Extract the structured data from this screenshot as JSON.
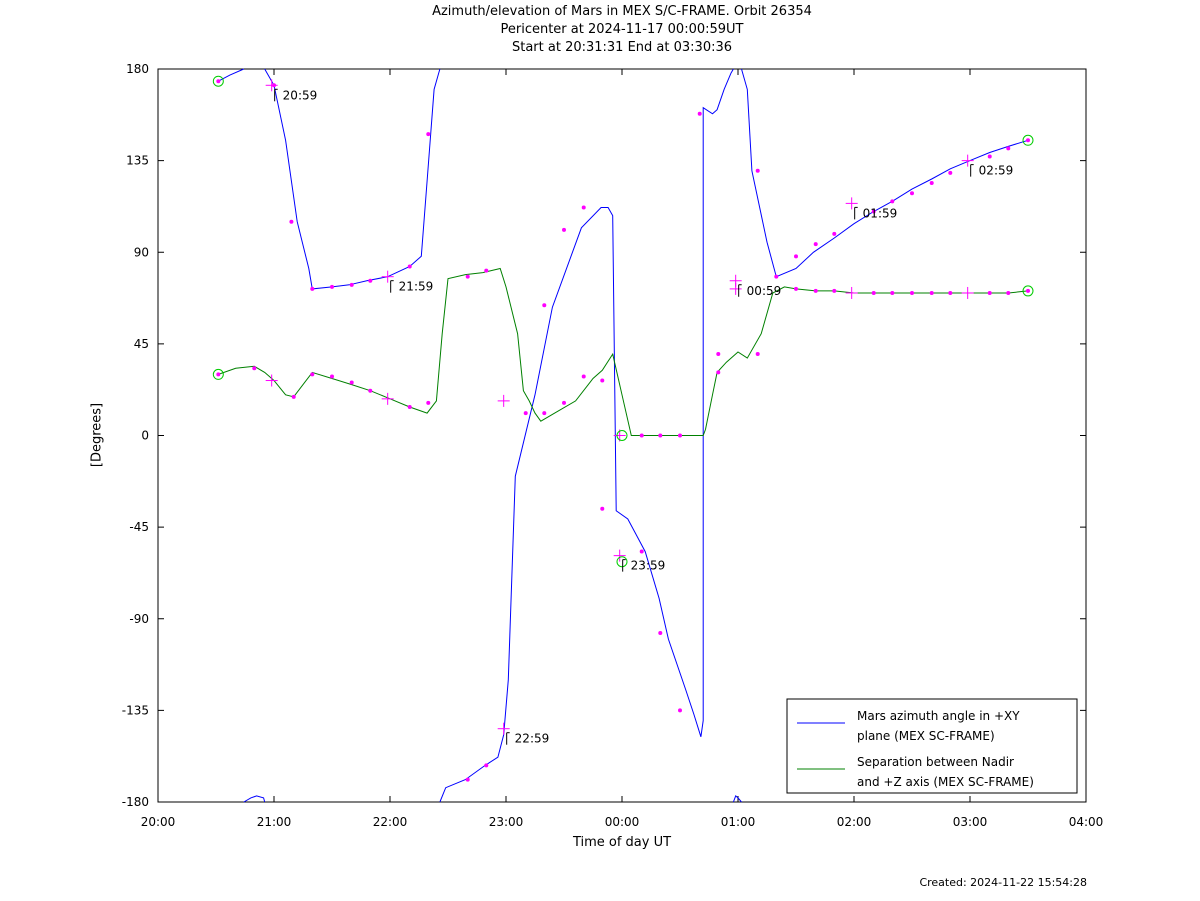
{
  "header": {
    "line1": "Azimuth/elevation of Mars in MEX S/C-FRAME.  Orbit 26354",
    "line2": "Pericenter at 2024-11-17 00:00:59UT",
    "line3": "Start at 20:31:31 End at 03:30:36"
  },
  "footer": {
    "created": "Created: 2024-11-22 15:54:28"
  },
  "chart_data": {
    "type": "line",
    "title": "Azimuth/elevation of Mars in MEX S/C-FRAME.  Orbit 26354",
    "xlabel": "Time of day UT",
    "ylabel": "[Degrees]",
    "x_unit": "hours since 20:00",
    "xlim": [
      0,
      8
    ],
    "ylim": [
      -180,
      180
    ],
    "xticks": [
      0,
      1,
      2,
      3,
      4,
      5,
      6,
      7,
      8
    ],
    "xtick_labels": [
      "20:00",
      "21:00",
      "22:00",
      "23:00",
      "00:00",
      "01:00",
      "02:00",
      "03:00",
      "04:00"
    ],
    "yticks": [
      180,
      135,
      90,
      45,
      0,
      -45,
      -90,
      -135,
      -180
    ],
    "ytick_labels": [
      "180",
      "135",
      "90",
      "45",
      "0",
      "-45",
      "-90",
      "-135",
      "-180"
    ],
    "legend_position": "bottom-right",
    "series": [
      {
        "name": "Mars azimuth angle in +XY plane (MEX SC-FRAME)",
        "legend_lines": [
          "Mars azimuth angle in +XY",
          "plane (MEX SC-FRAME)"
        ],
        "color": "#0000ff",
        "segments": [
          [
            [
              0.52,
              174
            ],
            [
              0.62,
              177
            ],
            [
              0.74,
              180
            ]
          ],
          [
            [
              0.74,
              -180
            ],
            [
              0.8,
              -178
            ],
            [
              0.85,
              -177
            ],
            [
              0.91,
              -178
            ],
            [
              0.92,
              -180
            ]
          ],
          [
            [
              0.92,
              180
            ],
            [
              1.0,
              172
            ],
            [
              1.1,
              145
            ],
            [
              1.2,
              105
            ],
            [
              1.3,
              82
            ],
            [
              1.33,
              72
            ],
            [
              1.5,
              73
            ],
            [
              1.65,
              74
            ],
            [
              1.8,
              76
            ],
            [
              1.98,
              78
            ],
            [
              2.17,
              83
            ],
            [
              2.27,
              88
            ],
            [
              2.32,
              125
            ],
            [
              2.38,
              170
            ],
            [
              2.42,
              178
            ],
            [
              2.43,
              180
            ]
          ],
          [
            [
              2.43,
              -180
            ],
            [
              2.48,
              -173
            ],
            [
              2.65,
              -169
            ],
            [
              2.82,
              -162
            ],
            [
              2.93,
              -158
            ],
            [
              2.98,
              -147
            ],
            [
              3.02,
              -120
            ],
            [
              3.08,
              -20
            ],
            [
              3.25,
              20
            ],
            [
              3.4,
              63
            ],
            [
              3.65,
              102
            ],
            [
              3.82,
              112
            ],
            [
              3.88,
              112
            ],
            [
              3.92,
              108
            ],
            [
              3.95,
              -37
            ],
            [
              4.05,
              -41
            ],
            [
              4.2,
              -57
            ],
            [
              4.32,
              -80
            ],
            [
              4.4,
              -100
            ],
            [
              4.55,
              -125
            ],
            [
              4.62,
              -137
            ],
            [
              4.68,
              -148
            ],
            [
              4.7,
              -140
            ],
            [
              4.7,
              161
            ],
            [
              4.78,
              158
            ],
            [
              4.82,
              160
            ],
            [
              4.88,
              170
            ],
            [
              4.94,
              178
            ],
            [
              4.96,
              180
            ]
          ],
          [
            [
              4.96,
              -180
            ],
            [
              4.98,
              -177
            ],
            [
              5.0,
              -178
            ],
            [
              5.03,
              -180
            ]
          ],
          [
            [
              5.03,
              180
            ],
            [
              5.08,
              170
            ],
            [
              5.12,
              130
            ],
            [
              5.25,
              95
            ],
            [
              5.33,
              78
            ],
            [
              5.5,
              82
            ],
            [
              5.65,
              90
            ],
            [
              5.83,
              97
            ],
            [
              6.0,
              104
            ],
            [
              6.17,
              110
            ],
            [
              6.33,
              115
            ],
            [
              6.5,
              121
            ],
            [
              6.67,
              126
            ],
            [
              6.83,
              131
            ],
            [
              7.0,
              135
            ],
            [
              7.17,
              139
            ],
            [
              7.33,
              142
            ],
            [
              7.5,
              145
            ]
          ]
        ]
      },
      {
        "name": "Separation between Nadir and +Z axis (MEX SC-FRAME)",
        "legend_lines": [
          "Separation between Nadir",
          "and +Z axis (MEX SC-FRAME)"
        ],
        "color": "#008000",
        "segments": [
          [
            [
              0.52,
              30
            ],
            [
              0.67,
              33
            ],
            [
              0.83,
              34
            ],
            [
              0.92,
              31
            ],
            [
              1.0,
              27
            ],
            [
              1.1,
              20
            ],
            [
              1.17,
              19
            ],
            [
              1.33,
              31
            ],
            [
              1.5,
              28
            ],
            [
              1.67,
              25
            ],
            [
              1.83,
              22
            ],
            [
              2.0,
              18
            ],
            [
              2.17,
              14
            ],
            [
              2.32,
              11
            ],
            [
              2.4,
              17
            ],
            [
              2.45,
              50
            ],
            [
              2.5,
              77
            ],
            [
              2.65,
              79
            ],
            [
              2.8,
              80
            ],
            [
              2.95,
              82
            ],
            [
              3.0,
              73
            ],
            [
              3.1,
              50
            ],
            [
              3.15,
              22
            ],
            [
              3.2,
              17
            ],
            [
              3.25,
              11
            ],
            [
              3.3,
              7
            ],
            [
              3.42,
              11
            ],
            [
              3.6,
              17
            ],
            [
              3.75,
              28
            ],
            [
              3.83,
              32
            ],
            [
              3.92,
              40
            ],
            [
              4.0,
              20
            ],
            [
              4.08,
              0
            ],
            [
              4.18,
              0
            ],
            [
              4.35,
              0
            ],
            [
              4.5,
              0
            ],
            [
              4.7,
              0
            ],
            [
              4.72,
              3
            ],
            [
              4.78,
              20
            ],
            [
              4.82,
              31
            ],
            [
              4.9,
              36
            ],
            [
              5.0,
              41
            ],
            [
              5.08,
              38
            ],
            [
              5.2,
              50
            ],
            [
              5.3,
              70
            ],
            [
              5.4,
              73
            ],
            [
              5.5,
              72
            ],
            [
              5.67,
              71
            ],
            [
              5.83,
              71
            ],
            [
              6.0,
              70
            ],
            [
              6.17,
              70
            ],
            [
              6.33,
              70
            ],
            [
              6.5,
              70
            ],
            [
              6.67,
              70
            ],
            [
              6.83,
              70
            ],
            [
              7.0,
              70
            ],
            [
              7.17,
              70
            ],
            [
              7.33,
              70
            ],
            [
              7.5,
              71
            ]
          ]
        ]
      }
    ],
    "markers": {
      "dots": [
        [
          0.52,
          174
        ],
        [
          1.0,
          172
        ],
        [
          1.15,
          105
        ],
        [
          1.33,
          72
        ],
        [
          1.5,
          73
        ],
        [
          1.67,
          74
        ],
        [
          1.83,
          76
        ],
        [
          2.17,
          83
        ],
        [
          2.33,
          148
        ],
        [
          2.67,
          -169
        ],
        [
          2.83,
          -162
        ],
        [
          3.33,
          64
        ],
        [
          3.5,
          101
        ],
        [
          3.67,
          112
        ],
        [
          3.83,
          -36
        ],
        [
          4.17,
          -57
        ],
        [
          4.33,
          -97
        ],
        [
          4.5,
          -135
        ],
        [
          4.67,
          158
        ],
        [
          5.17,
          130
        ],
        [
          5.33,
          78
        ],
        [
          5.5,
          88
        ],
        [
          5.67,
          94
        ],
        [
          5.83,
          99
        ],
        [
          6.17,
          110
        ],
        [
          6.33,
          115
        ],
        [
          6.5,
          119
        ],
        [
          6.67,
          124
        ],
        [
          6.83,
          129
        ],
        [
          7.17,
          137
        ],
        [
          7.33,
          141
        ],
        [
          7.5,
          145
        ],
        [
          0.52,
          30
        ],
        [
          0.83,
          33
        ],
        [
          1.17,
          19
        ],
        [
          1.33,
          30
        ],
        [
          1.5,
          29
        ],
        [
          1.67,
          26
        ],
        [
          1.83,
          22
        ],
        [
          2.17,
          14
        ],
        [
          2.33,
          16
        ],
        [
          2.67,
          78
        ],
        [
          2.83,
          81
        ],
        [
          3.17,
          11
        ],
        [
          3.33,
          11
        ],
        [
          3.5,
          16
        ],
        [
          3.67,
          29
        ],
        [
          3.83,
          27
        ],
        [
          4.17,
          0
        ],
        [
          4.33,
          0
        ],
        [
          4.5,
          0
        ],
        [
          4.83,
          31
        ],
        [
          4.83,
          40
        ],
        [
          5.17,
          40
        ],
        [
          5.5,
          72
        ],
        [
          5.67,
          71
        ],
        [
          5.83,
          71
        ],
        [
          6.17,
          70
        ],
        [
          6.33,
          70
        ],
        [
          6.5,
          70
        ],
        [
          6.67,
          70
        ],
        [
          6.83,
          70
        ],
        [
          7.17,
          70
        ],
        [
          7.33,
          70
        ],
        [
          7.5,
          71
        ]
      ],
      "crosses": [
        [
          0.98,
          172
        ],
        [
          0.98,
          27
        ],
        [
          1.98,
          78
        ],
        [
          1.98,
          18
        ],
        [
          2.98,
          -144
        ],
        [
          2.98,
          17
        ],
        [
          3.98,
          -59
        ],
        [
          3.98,
          0
        ],
        [
          4.98,
          76
        ],
        [
          4.98,
          72
        ],
        [
          5.98,
          114
        ],
        [
          5.98,
          70
        ],
        [
          6.98,
          135
        ],
        [
          6.98,
          70
        ]
      ],
      "circles": [
        [
          0.52,
          174
        ],
        [
          0.52,
          30
        ],
        [
          4.0,
          0
        ],
        [
          4.0,
          -62
        ],
        [
          7.5,
          145
        ],
        [
          7.5,
          71
        ]
      ]
    },
    "annotations": [
      {
        "label": "20:59",
        "x": 0.98,
        "y": 172
      },
      {
        "label": "21:59",
        "x": 1.98,
        "y": 78
      },
      {
        "label": "22:59",
        "x": 2.98,
        "y": -144
      },
      {
        "label": "23:59",
        "x": 3.98,
        "y": -59
      },
      {
        "label": "00:59",
        "x": 4.98,
        "y": 76
      },
      {
        "label": "01:59",
        "x": 5.98,
        "y": 114
      },
      {
        "label": "02:59",
        "x": 6.98,
        "y": 135
      }
    ]
  }
}
